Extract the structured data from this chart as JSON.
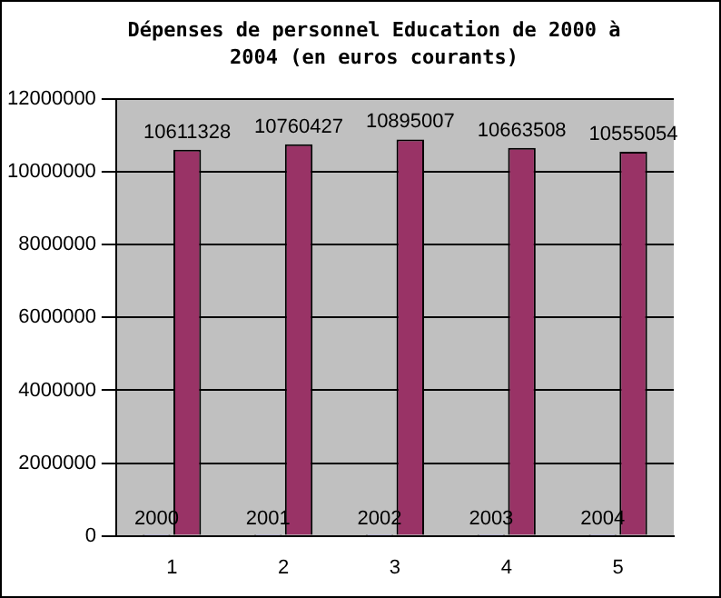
{
  "chart_data": {
    "type": "bar",
    "title": "Dépenses de personnel Education de 2000 à 2004 (en euros courants)",
    "categories": [
      "1",
      "2",
      "3",
      "4",
      "5"
    ],
    "series": [
      {
        "color": "#9999ff",
        "values": [
          2000,
          2001,
          2002,
          2003,
          2004
        ]
      },
      {
        "color": "#993366",
        "values": [
          10611328,
          10760427,
          10895007,
          10663508,
          10555054
        ]
      }
    ],
    "ylim": [
      0,
      12000000
    ],
    "yticks": [
      0,
      2000000,
      4000000,
      6000000,
      8000000,
      10000000,
      12000000
    ],
    "grid": "y",
    "data_labels": true,
    "legend": false
  }
}
